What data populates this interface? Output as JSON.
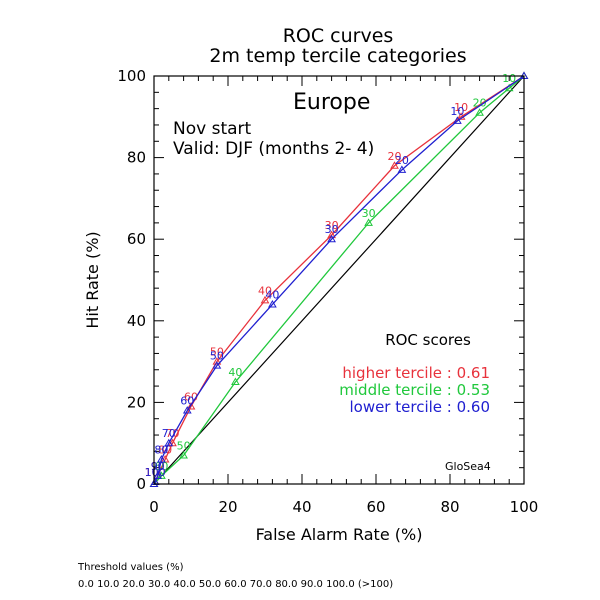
{
  "chart_data": {
    "type": "line",
    "title": "ROC curves",
    "subtitle": "2m temp tercile categories",
    "region": "Europe",
    "start_label": "Nov start",
    "valid_label": "Valid: DJF (months 2- 4)",
    "xlabel": "False Alarm Rate (%)",
    "ylabel": "Hit Rate (%)",
    "xlim": [
      0,
      100
    ],
    "ylim": [
      0,
      100
    ],
    "x_ticks": [
      "0",
      "20",
      "40",
      "60",
      "80",
      "100"
    ],
    "y_ticks": [
      "0",
      "20",
      "40",
      "60",
      "80",
      "100"
    ],
    "grid": false,
    "legend_position": "lower-right",
    "scores_heading": "ROC scores",
    "model_label": "GloSea4",
    "colors": {
      "higher": "#e8323c",
      "middle": "#20c83c",
      "lower": "#2020d0",
      "diagonal": "#000000"
    },
    "series": [
      {
        "name": "higher tercile",
        "score_label": "higher tercile : 0.61",
        "color": "#e8323c",
        "points": [
          {
            "x": 100,
            "y": 100,
            "label": ""
          },
          {
            "x": 83,
            "y": 90,
            "label": "10"
          },
          {
            "x": 65,
            "y": 78,
            "label": "20"
          },
          {
            "x": 48,
            "y": 61,
            "label": "30"
          },
          {
            "x": 30,
            "y": 45,
            "label": "40"
          },
          {
            "x": 17,
            "y": 30,
            "label": "50"
          },
          {
            "x": 10,
            "y": 19,
            "label": "60"
          },
          {
            "x": 5,
            "y": 10,
            "label": "70"
          },
          {
            "x": 3,
            "y": 6,
            "label": "80"
          },
          {
            "x": 1,
            "y": 2,
            "label": "90"
          },
          {
            "x": 0.3,
            "y": 0.5,
            "label": "100"
          },
          {
            "x": 0,
            "y": 0,
            "label": ""
          }
        ]
      },
      {
        "name": "middle tercile",
        "score_label": "middle tercile : 0.53",
        "color": "#20c83c",
        "points": [
          {
            "x": 100,
            "y": 100,
            "label": ""
          },
          {
            "x": 96,
            "y": 97,
            "label": "10"
          },
          {
            "x": 88,
            "y": 91,
            "label": "20"
          },
          {
            "x": 58,
            "y": 64,
            "label": "30"
          },
          {
            "x": 22,
            "y": 25,
            "label": "40"
          },
          {
            "x": 8,
            "y": 7,
            "label": "50"
          },
          {
            "x": 2,
            "y": 2,
            "label": "60"
          },
          {
            "x": 0,
            "y": 0,
            "label": ""
          }
        ]
      },
      {
        "name": "lower tercile",
        "score_label": "lower tercile : 0.60",
        "color": "#2020d0",
        "points": [
          {
            "x": 100,
            "y": 100,
            "label": ""
          },
          {
            "x": 82,
            "y": 89,
            "label": "10"
          },
          {
            "x": 67,
            "y": 77,
            "label": "20"
          },
          {
            "x": 48,
            "y": 60,
            "label": "30"
          },
          {
            "x": 32,
            "y": 44,
            "label": "40"
          },
          {
            "x": 17,
            "y": 29,
            "label": "50"
          },
          {
            "x": 9,
            "y": 18,
            "label": "60"
          },
          {
            "x": 4,
            "y": 10,
            "label": "70"
          },
          {
            "x": 2,
            "y": 6,
            "label": "80"
          },
          {
            "x": 1,
            "y": 2,
            "label": "90"
          },
          {
            "x": 0.3,
            "y": 0.5,
            "label": "100"
          },
          {
            "x": 0,
            "y": 0,
            "label": ""
          }
        ]
      }
    ]
  },
  "footer": {
    "threshold_title": "Threshold values (%)",
    "threshold_values": "0.0 10.0 20.0 30.0 40.0 50.0 60.0 70.0 80.0 90.0 100.0 (>100)"
  }
}
